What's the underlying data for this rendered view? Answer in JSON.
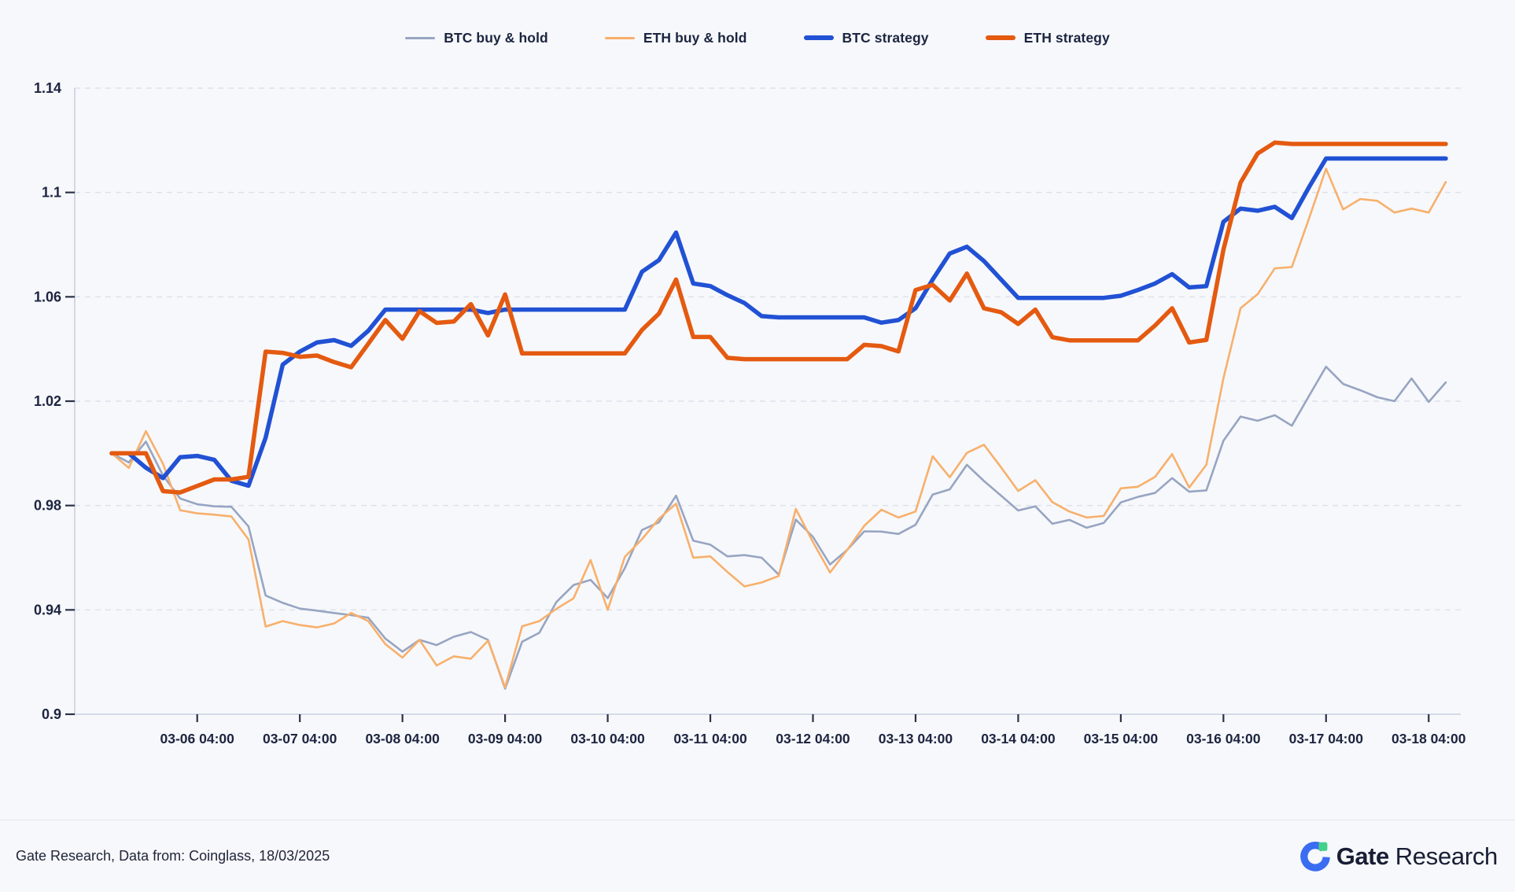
{
  "legend": {
    "items": [
      {
        "label": "BTC buy & hold",
        "color": "#97a5c2",
        "thickness": 3
      },
      {
        "label": "ETH buy & hold",
        "color": "#f7b06c",
        "thickness": 3
      },
      {
        "label": "BTC strategy",
        "color": "#2151d4",
        "thickness": 6
      },
      {
        "label": "ETH strategy",
        "color": "#e45a10",
        "thickness": 6
      }
    ]
  },
  "chart_data": {
    "type": "line",
    "title": "",
    "xlabel": "",
    "ylabel": "",
    "grid": true,
    "legend_position": "top-center",
    "ylim": [
      0.9,
      1.14
    ],
    "y_tick_labels": [
      "1.14",
      "1.1",
      "1.06",
      "1.02",
      "0.98",
      "0.94",
      "0.9"
    ],
    "y_tick_values": [
      1.14,
      1.1,
      1.06,
      1.02,
      0.98,
      0.94,
      0.9
    ],
    "x_tick_labels": [
      "03-06 04:00",
      "03-07 04:00",
      "03-08 04:00",
      "03-09 04:00",
      "03-10 04:00",
      "03-11 04:00",
      "03-12 04:00",
      "03-13 04:00",
      "03-14 04:00",
      "03-15 04:00",
      "03-16 04:00",
      "03-17 04:00",
      "03-18 04:00"
    ],
    "first_tick_point_index": 5,
    "points_per_tick_interval": 6,
    "series": [
      {
        "name": "BTC buy & hold",
        "color": "#97a5c2",
        "width": 2.6,
        "values": [
          1.0,
          0.9965,
          1.0045,
          0.9915,
          0.9827,
          0.9805,
          0.9797,
          0.9795,
          0.972,
          0.9455,
          0.9427,
          0.9405,
          0.9397,
          0.9388,
          0.938,
          0.937,
          0.929,
          0.924,
          0.9285,
          0.9265,
          0.9297,
          0.9315,
          0.9285,
          0.9098,
          0.9278,
          0.9312,
          0.943,
          0.9495,
          0.9515,
          0.9445,
          0.956,
          0.9706,
          0.9736,
          0.9838,
          0.9665,
          0.965,
          0.9605,
          0.961,
          0.96,
          0.9535,
          0.9746,
          0.968,
          0.9574,
          0.963,
          0.9701,
          0.97,
          0.9691,
          0.9726,
          0.9842,
          0.9862,
          0.9956,
          0.9894,
          0.9838,
          0.9781,
          0.9797,
          0.973,
          0.9745,
          0.9715,
          0.9733,
          0.9812,
          0.9833,
          0.9848,
          0.9905,
          0.9853,
          0.9858,
          1.0048,
          1.0141,
          1.0125,
          1.0146,
          1.0106,
          1.022,
          1.0332,
          1.0266,
          1.0242,
          1.0215,
          1.02,
          1.0287,
          1.0197,
          1.0272
        ]
      },
      {
        "name": "ETH buy & hold",
        "color": "#f7b06c",
        "width": 2.6,
        "values": [
          1.0,
          0.9944,
          1.0085,
          0.996,
          0.9782,
          0.977,
          0.9765,
          0.9758,
          0.967,
          0.9336,
          0.9357,
          0.9342,
          0.9333,
          0.9348,
          0.9388,
          0.9357,
          0.9269,
          0.9217,
          0.9285,
          0.9187,
          0.9222,
          0.9213,
          0.9282,
          0.9103,
          0.9337,
          0.9357,
          0.9404,
          0.9444,
          0.9591,
          0.94,
          0.9603,
          0.9671,
          0.975,
          0.9807,
          0.96,
          0.9605,
          0.9545,
          0.949,
          0.9505,
          0.953,
          0.9787,
          0.966,
          0.9543,
          0.963,
          0.9722,
          0.9784,
          0.9754,
          0.9777,
          0.9989,
          0.9908,
          1.0002,
          1.0033,
          0.9946,
          0.9856,
          0.9897,
          0.9813,
          0.9777,
          0.9754,
          0.976,
          0.9866,
          0.9872,
          0.991,
          0.9997,
          0.9869,
          0.9956,
          1.0287,
          1.0556,
          1.061,
          1.0709,
          1.0714,
          1.09,
          1.1091,
          1.0935,
          1.0975,
          1.0968,
          1.0923,
          1.0938,
          1.0923,
          1.104
        ]
      },
      {
        "name": "BTC strategy",
        "color": "#2151d4",
        "width": 5.5,
        "values": [
          1.0,
          1.0,
          0.9945,
          0.9905,
          0.9985,
          0.999,
          0.9975,
          0.9895,
          0.9876,
          1.006,
          1.034,
          1.039,
          1.0425,
          1.0434,
          1.0412,
          1.047,
          1.0551,
          1.0551,
          1.0551,
          1.0551,
          1.0551,
          1.0551,
          1.0538,
          1.0551,
          1.0551,
          1.0551,
          1.0551,
          1.0551,
          1.0551,
          1.0551,
          1.0551,
          1.0696,
          1.0741,
          1.0846,
          1.0651,
          1.0641,
          1.0606,
          1.0576,
          1.0526,
          1.0521,
          1.0521,
          1.0521,
          1.0521,
          1.0521,
          1.0521,
          1.0501,
          1.0511,
          1.0556,
          1.0666,
          1.0766,
          1.0792,
          1.0737,
          1.0666,
          1.0596,
          1.0596,
          1.0596,
          1.0596,
          1.0596,
          1.0596,
          1.0604,
          1.0626,
          1.0651,
          1.0687,
          1.0636,
          1.0641,
          1.0887,
          1.0938,
          1.093,
          1.0945,
          1.0902,
          1.102,
          1.113,
          1.113,
          1.113,
          1.113,
          1.113,
          1.113,
          1.113,
          1.113
        ]
      },
      {
        "name": "ETH strategy",
        "color": "#e45a10",
        "width": 5.5,
        "values": [
          1.0,
          1.0,
          1.0,
          0.9855,
          0.985,
          0.9875,
          0.99,
          0.99,
          0.991,
          1.039,
          1.0385,
          1.037,
          1.0375,
          1.035,
          1.033,
          1.042,
          1.0511,
          1.0439,
          1.0545,
          1.05,
          1.0505,
          1.0572,
          1.0452,
          1.0609,
          1.0383,
          1.0383,
          1.0383,
          1.0383,
          1.0383,
          1.0383,
          1.0383,
          1.0473,
          1.0536,
          1.0666,
          1.0446,
          1.0446,
          1.0366,
          1.0361,
          1.0361,
          1.0361,
          1.0361,
          1.0361,
          1.0361,
          1.0361,
          1.0416,
          1.0411,
          1.0391,
          1.0626,
          1.0646,
          1.0586,
          1.0689,
          1.0556,
          1.0541,
          1.0496,
          1.0551,
          1.0445,
          1.0433,
          1.0433,
          1.0433,
          1.0433,
          1.0433,
          1.049,
          1.0556,
          1.0425,
          1.0435,
          1.078,
          1.1038,
          1.1149,
          1.1191,
          1.1186,
          1.1186,
          1.1186,
          1.1186,
          1.1186,
          1.1186,
          1.1186,
          1.1186,
          1.1186,
          1.1186
        ]
      }
    ]
  },
  "axis_style": {
    "grid_color": "#dde1ec",
    "axis_line_color": "#c9d0e0",
    "tick_color": "#2b3147",
    "label_color": "#1c2440"
  },
  "footer": {
    "source": "Gate Research, Data from: Coinglass, 18/03/2025",
    "brand_bold": "Gate",
    "brand_regular": "Research",
    "logo_blue": "#3b6df2",
    "logo_green": "#43d08c"
  }
}
